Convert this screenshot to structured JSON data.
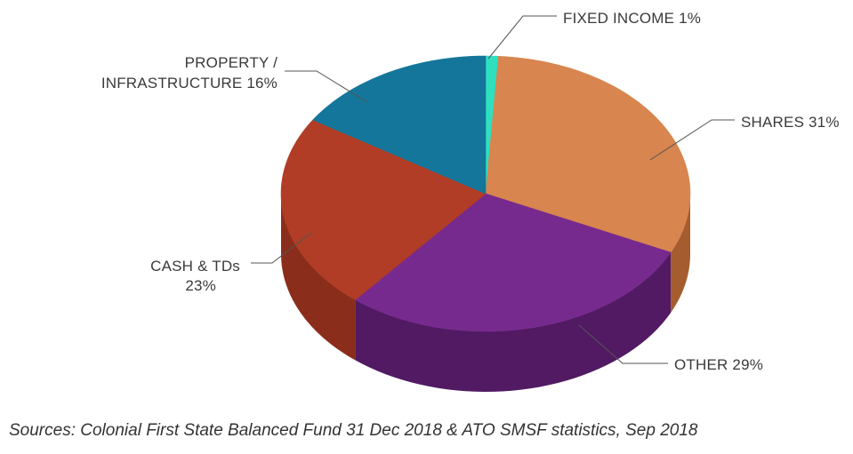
{
  "chart_data": {
    "type": "pie",
    "categories": [
      "FIXED INCOME",
      "SHARES",
      "OTHER",
      "CASH & TDs",
      "PROPERTY / INFRASTRUCTURE"
    ],
    "values": [
      1,
      31,
      29,
      23,
      16
    ],
    "colors": [
      "#2ee0c0",
      "#d8854f",
      "#772a8e",
      "#b13d26",
      "#13769a"
    ],
    "side_colors": [
      "#1fa88f",
      "#a55d2f",
      "#511a63",
      "#8a2e1b",
      "#0d5670"
    ],
    "labels": {
      "fixed_income": "FIXED INCOME 1%",
      "shares": "SHARES 31%",
      "other": "OTHER 29%",
      "cash_line1": "CASH & TDs",
      "cash_line2": "23%",
      "property_line1": "PROPERTY /",
      "property_line2": "INFRASTRUCTURE 16%"
    }
  },
  "source_note": "Sources: Colonial First State Balanced Fund 31 Dec 2018 & ATO SMSF statistics, Sep 2018"
}
